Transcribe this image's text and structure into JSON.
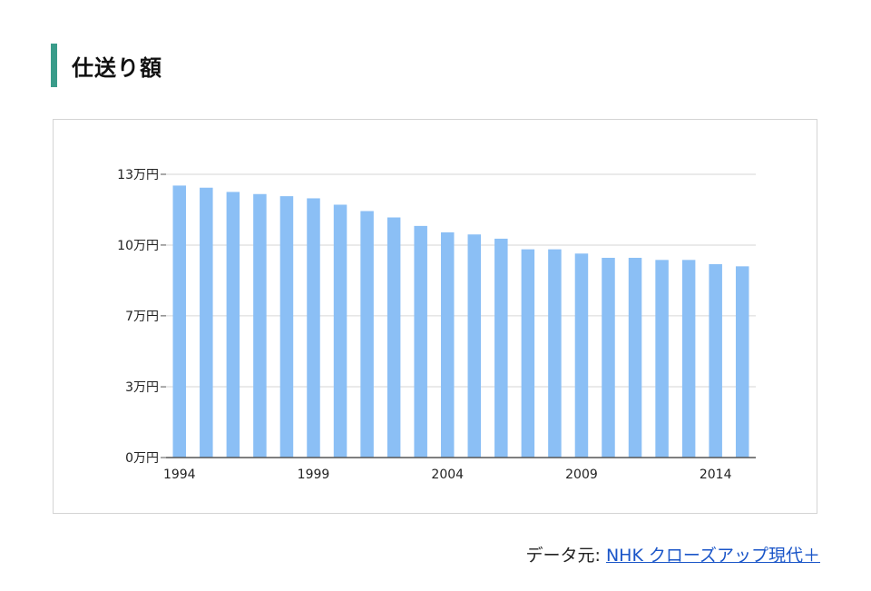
{
  "heading": {
    "title": "仕送り額",
    "accent_color": "#3a9c8a"
  },
  "source": {
    "prefix": "データ元:",
    "link_text": "NHK クローズアップ現代＋",
    "link_color": "#1a55c8"
  },
  "chart_data": {
    "type": "bar",
    "title": "",
    "xlabel": "",
    "ylabel": "",
    "bar_color": "#8bbff5",
    "grid": true,
    "ylim": [
      0,
      13
    ],
    "yticks": [
      {
        "value": 0,
        "label": "0万円"
      },
      {
        "value": 3.33,
        "label": "3万円"
      },
      {
        "value": 6.67,
        "label": "7万円"
      },
      {
        "value": 10,
        "label": "10万円"
      },
      {
        "value": 13.33,
        "label": "13万円"
      }
    ],
    "xtick_labels": [
      {
        "index": 0,
        "label": "1994"
      },
      {
        "index": 5,
        "label": "1999"
      },
      {
        "index": 10,
        "label": "2004"
      },
      {
        "index": 15,
        "label": "2009"
      },
      {
        "index": 20,
        "label": "2014"
      }
    ],
    "categories": [
      "1994",
      "1995",
      "1996",
      "1997",
      "1998",
      "1999",
      "2000",
      "2001",
      "2002",
      "2003",
      "2004",
      "2005",
      "2006",
      "2007",
      "2008",
      "2009",
      "2010",
      "2011",
      "2012",
      "2013",
      "2014",
      "2015"
    ],
    "values": [
      12.8,
      12.7,
      12.5,
      12.4,
      12.3,
      12.2,
      11.9,
      11.6,
      11.3,
      10.9,
      10.6,
      10.5,
      10.3,
      9.8,
      9.8,
      9.6,
      9.4,
      9.4,
      9.3,
      9.3,
      9.1,
      9.0
    ]
  }
}
